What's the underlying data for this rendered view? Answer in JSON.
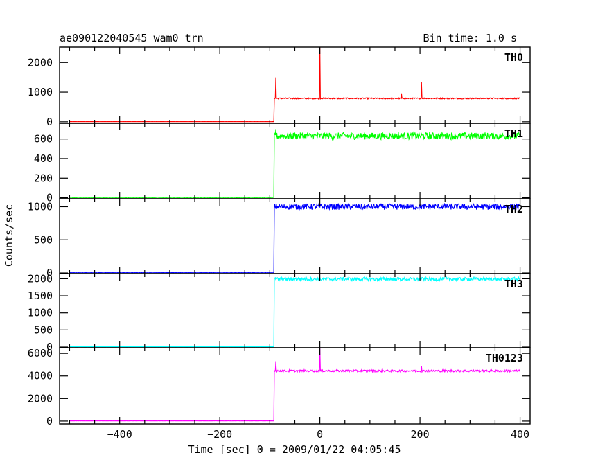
{
  "header": {
    "title": "ae090122040545_wam0_trn",
    "bin_time": "Bin time: 1.0 s"
  },
  "chart_data": {
    "type": "line",
    "xlabel": "Time [sec] 0 = 2009/01/22 04:05:45",
    "ylabel": "Counts/sec",
    "xlim": [
      -520,
      420
    ],
    "x_ticks": [
      -400,
      -200,
      0,
      200,
      400
    ],
    "x_tick_labels": [
      "−400",
      "−200",
      "0",
      "200",
      "400"
    ],
    "x_data_range": [
      -500,
      400
    ],
    "step_time": -91,
    "series": [
      {
        "name": "TH0",
        "color": "#ff0000",
        "ylim": [
          -50,
          2520
        ],
        "y_ticks": [
          0,
          1000,
          2000
        ],
        "y_tick_labels": [
          "0",
          "1000",
          "2000"
        ],
        "pre_level": 5,
        "post_level": 790,
        "noise": 20,
        "spikes": [
          {
            "x": -88,
            "y": 1500
          },
          {
            "x": 0,
            "y": 2520
          },
          {
            "x": 203,
            "y": 1340
          },
          {
            "x": 163,
            "y": 960
          }
        ]
      },
      {
        "name": "TH1",
        "color": "#00ff00",
        "ylim": [
          -10,
          760
        ],
        "y_ticks": [
          0,
          200,
          400,
          600
        ],
        "y_tick_labels": [
          "0",
          "200",
          "400",
          "600"
        ],
        "pre_level": 3,
        "post_level": 630,
        "noise": 35,
        "spikes": [
          {
            "x": -88,
            "y": 700
          }
        ]
      },
      {
        "name": "TH2",
        "color": "#0000ff",
        "ylim": [
          -10,
          1120
        ],
        "y_ticks": [
          0,
          500,
          1000
        ],
        "y_tick_labels": [
          "0",
          "500",
          "1000"
        ],
        "pre_level": 8,
        "post_level": 1000,
        "noise": 45,
        "spikes": []
      },
      {
        "name": "TH3",
        "color": "#00ffff",
        "ylim": [
          -20,
          2150
        ],
        "y_ticks": [
          0,
          500,
          1000,
          1500,
          2000
        ],
        "y_tick_labels": [
          "0",
          "500",
          "1000",
          "1500",
          "2000"
        ],
        "pre_level": 10,
        "post_level": 1990,
        "noise": 50,
        "spikes": []
      },
      {
        "name": "TH0123",
        "color": "#ff00ff",
        "ylim": [
          -250,
          6500
        ],
        "y_ticks": [
          0,
          2000,
          4000,
          6000
        ],
        "y_tick_labels": [
          "0",
          "2000",
          "4000",
          "6000"
        ],
        "pre_level": 20,
        "post_level": 4450,
        "noise": 90,
        "spikes": [
          {
            "x": -88,
            "y": 5300
          },
          {
            "x": 0,
            "y": 6500
          },
          {
            "x": 203,
            "y": 4900
          }
        ]
      }
    ]
  }
}
